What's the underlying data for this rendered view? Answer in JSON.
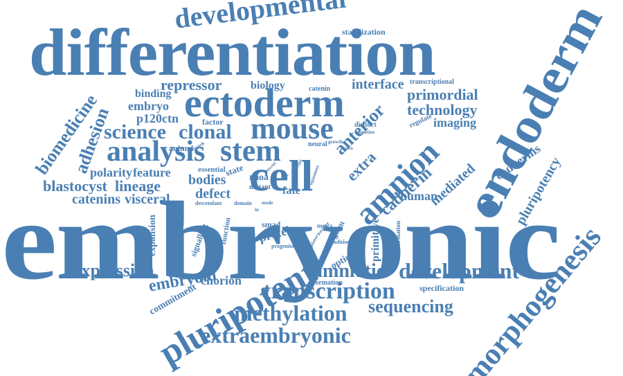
{
  "word_color": "#4a7fb3",
  "words": {
    "embryonic": "embryonic",
    "differentiation": "differentiation",
    "endoderm": "endoderm",
    "ectoderm": "ectoderm",
    "pluripotent": "pluripotent",
    "morphogenesis": "morphogenesis",
    "developmental": "developmental",
    "mouse": "mouse",
    "stem": "stem",
    "cell": "cell",
    "amnion": "amnion",
    "analysis": "analysis",
    "science": "science",
    "clonal": "clonal",
    "transcription": "transcription",
    "methylation": "methylation",
    "extraembryonic": "extraembryonic",
    "development": "development",
    "amniotic": "amniotic",
    "sequencing": "sequencing",
    "expression": "expression",
    "embryoid": "embryoid",
    "chorion": "chorion",
    "biomedicine": "biomedicine",
    "adhesion": "adhesion",
    "lineage": "lineage",
    "blastocyst": "blastocyst",
    "catenins": "catenins",
    "visceral": "visceral",
    "polarity": "polarity",
    "feature": "feature",
    "bodies": "bodies",
    "defect": "defect",
    "anterior": "anterior",
    "extra": "extra",
    "cadherin": "cadherin",
    "cadherins": "cadherins",
    "pluripotency": "pluripotency",
    "mediated": "mediated",
    "human": "human",
    "primordial": "primordial",
    "technology": "technology",
    "imaging": "imaging",
    "interface": "interface",
    "repressor": "repressor",
    "biology": "biology",
    "binding": "binding",
    "embryo": "embryo",
    "p120ctn": "p120ctn",
    "factor": "factor",
    "animal": "animal",
    "stabilization": "stabilization",
    "transcriptional": "transcriptional",
    "catenin": "catenin",
    "regulate": "regulate",
    "distinct": "distinct",
    "transition": "transition",
    "network": "network",
    "essential": "essential",
    "state": "state",
    "rhoa": "rhoa",
    "mutant": "mutant",
    "descendant": "descendant",
    "domain": "domain",
    "fate": "fate",
    "smad": "smad",
    "protein": "protein",
    "progenitor": "progenitor",
    "primitive": "primitive",
    "germ": "germ",
    "optical": "optical",
    "formation": "formation",
    "specification": "specification",
    "malformation": "malformation",
    "condition": "condition",
    "mescs": "mescs",
    "signalling": "signalling",
    "function": "function",
    "membrane": "membrane",
    "expansion": "expansion",
    "commitment": "commitment",
    "neural": "neural",
    "growth": "growth",
    "occur": "occur",
    "life": "life",
    "squamous": "squamous",
    "lumen": "lumen",
    "require": "require",
    "regulatory": "regulatory",
    "type": "type",
    "mode": "mode",
    "in": "in"
  }
}
